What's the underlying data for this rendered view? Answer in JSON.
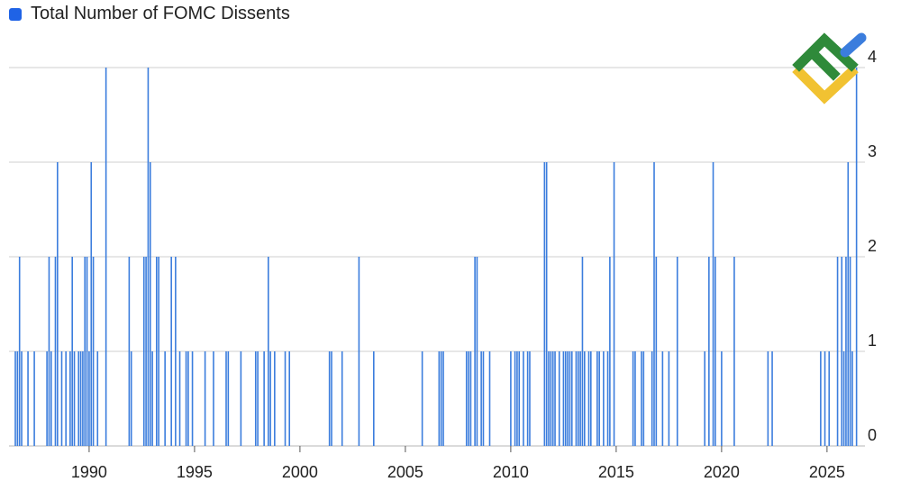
{
  "chart_data": {
    "type": "bar",
    "title": "",
    "xlabel": "",
    "ylabel": "",
    "legend": {
      "position": "top-left",
      "entries": [
        "Total Number of FOMC Dissents"
      ]
    },
    "series": [
      {
        "name": "Total Number of FOMC Dissents",
        "color": "#3b7ddd"
      }
    ],
    "xlim": [
      1986.2,
      2026.8
    ],
    "ylim": [
      0,
      4
    ],
    "x_ticks": [
      1990,
      1995,
      2000,
      2005,
      2010,
      2015,
      2020,
      2025
    ],
    "x_tick_labels": [
      "1990",
      "1995",
      "2000",
      "2005",
      "2010",
      "2015",
      "2020",
      "2025"
    ],
    "y_ticks": [
      0,
      1,
      2,
      3,
      4
    ],
    "y_tick_labels": [
      "0",
      "1",
      "2",
      "3",
      "4"
    ],
    "grid": "horizontal",
    "points": [
      [
        1986.5,
        1
      ],
      [
        1986.6,
        1
      ],
      [
        1986.7,
        2
      ],
      [
        1986.8,
        1
      ],
      [
        1987.1,
        1
      ],
      [
        1987.4,
        1
      ],
      [
        1988.0,
        1
      ],
      [
        1988.1,
        2
      ],
      [
        1988.2,
        1
      ],
      [
        1988.4,
        2
      ],
      [
        1988.5,
        3
      ],
      [
        1988.7,
        1
      ],
      [
        1988.9,
        1
      ],
      [
        1989.1,
        1
      ],
      [
        1989.2,
        2
      ],
      [
        1989.3,
        1
      ],
      [
        1989.5,
        1
      ],
      [
        1989.6,
        1
      ],
      [
        1989.7,
        1
      ],
      [
        1989.8,
        2
      ],
      [
        1989.9,
        2
      ],
      [
        1990.0,
        1
      ],
      [
        1990.1,
        3
      ],
      [
        1990.2,
        2
      ],
      [
        1990.4,
        1
      ],
      [
        1990.8,
        4
      ],
      [
        1991.9,
        2
      ],
      [
        1992.0,
        1
      ],
      [
        1992.6,
        2
      ],
      [
        1992.7,
        2
      ],
      [
        1992.8,
        4
      ],
      [
        1992.9,
        3
      ],
      [
        1993.0,
        1
      ],
      [
        1993.2,
        2
      ],
      [
        1993.3,
        2
      ],
      [
        1993.6,
        1
      ],
      [
        1993.9,
        2
      ],
      [
        1994.1,
        2
      ],
      [
        1994.3,
        1
      ],
      [
        1994.6,
        1
      ],
      [
        1994.7,
        1
      ],
      [
        1994.9,
        1
      ],
      [
        1995.5,
        1
      ],
      [
        1995.9,
        1
      ],
      [
        1996.5,
        1
      ],
      [
        1996.6,
        1
      ],
      [
        1997.2,
        1
      ],
      [
        1997.9,
        1
      ],
      [
        1998.0,
        1
      ],
      [
        1998.3,
        1
      ],
      [
        1998.5,
        2
      ],
      [
        1998.6,
        1
      ],
      [
        1998.8,
        1
      ],
      [
        1999.3,
        1
      ],
      [
        1999.5,
        1
      ],
      [
        2001.4,
        1
      ],
      [
        2001.5,
        1
      ],
      [
        2002.0,
        1
      ],
      [
        2002.8,
        2
      ],
      [
        2003.5,
        1
      ],
      [
        2005.8,
        1
      ],
      [
        2006.6,
        1
      ],
      [
        2006.7,
        1
      ],
      [
        2006.8,
        1
      ],
      [
        2007.9,
        1
      ],
      [
        2008.0,
        1
      ],
      [
        2008.1,
        1
      ],
      [
        2008.3,
        2
      ],
      [
        2008.4,
        2
      ],
      [
        2008.6,
        1
      ],
      [
        2008.7,
        1
      ],
      [
        2009.0,
        1
      ],
      [
        2010.0,
        1
      ],
      [
        2010.2,
        1
      ],
      [
        2010.3,
        1
      ],
      [
        2010.4,
        1
      ],
      [
        2010.6,
        1
      ],
      [
        2010.8,
        1
      ],
      [
        2010.9,
        1
      ],
      [
        2011.6,
        3
      ],
      [
        2011.7,
        3
      ],
      [
        2011.8,
        1
      ],
      [
        2011.9,
        1
      ],
      [
        2012.0,
        1
      ],
      [
        2012.1,
        1
      ],
      [
        2012.3,
        1
      ],
      [
        2012.5,
        1
      ],
      [
        2012.6,
        1
      ],
      [
        2012.7,
        1
      ],
      [
        2012.8,
        1
      ],
      [
        2012.9,
        1
      ],
      [
        2013.1,
        1
      ],
      [
        2013.2,
        1
      ],
      [
        2013.3,
        1
      ],
      [
        2013.4,
        2
      ],
      [
        2013.5,
        1
      ],
      [
        2013.7,
        1
      ],
      [
        2013.8,
        1
      ],
      [
        2014.1,
        1
      ],
      [
        2014.2,
        1
      ],
      [
        2014.4,
        1
      ],
      [
        2014.6,
        1
      ],
      [
        2014.7,
        2
      ],
      [
        2014.9,
        3
      ],
      [
        2015.8,
        1
      ],
      [
        2015.9,
        1
      ],
      [
        2016.2,
        1
      ],
      [
        2016.3,
        1
      ],
      [
        2016.7,
        1
      ],
      [
        2016.8,
        3
      ],
      [
        2016.9,
        2
      ],
      [
        2017.2,
        1
      ],
      [
        2017.5,
        1
      ],
      [
        2017.9,
        2
      ],
      [
        2019.2,
        1
      ],
      [
        2019.4,
        2
      ],
      [
        2019.6,
        3
      ],
      [
        2019.7,
        2
      ],
      [
        2020.0,
        1
      ],
      [
        2020.6,
        2
      ],
      [
        2022.2,
        1
      ],
      [
        2022.4,
        1
      ],
      [
        2024.7,
        1
      ],
      [
        2024.9,
        1
      ],
      [
        2025.1,
        1
      ],
      [
        2025.5,
        2
      ],
      [
        2025.7,
        2
      ],
      [
        2025.8,
        1
      ],
      [
        2025.9,
        2
      ],
      [
        2026.0,
        3
      ],
      [
        2026.1,
        2
      ],
      [
        2026.2,
        1
      ],
      [
        2026.4,
        4
      ]
    ]
  }
}
